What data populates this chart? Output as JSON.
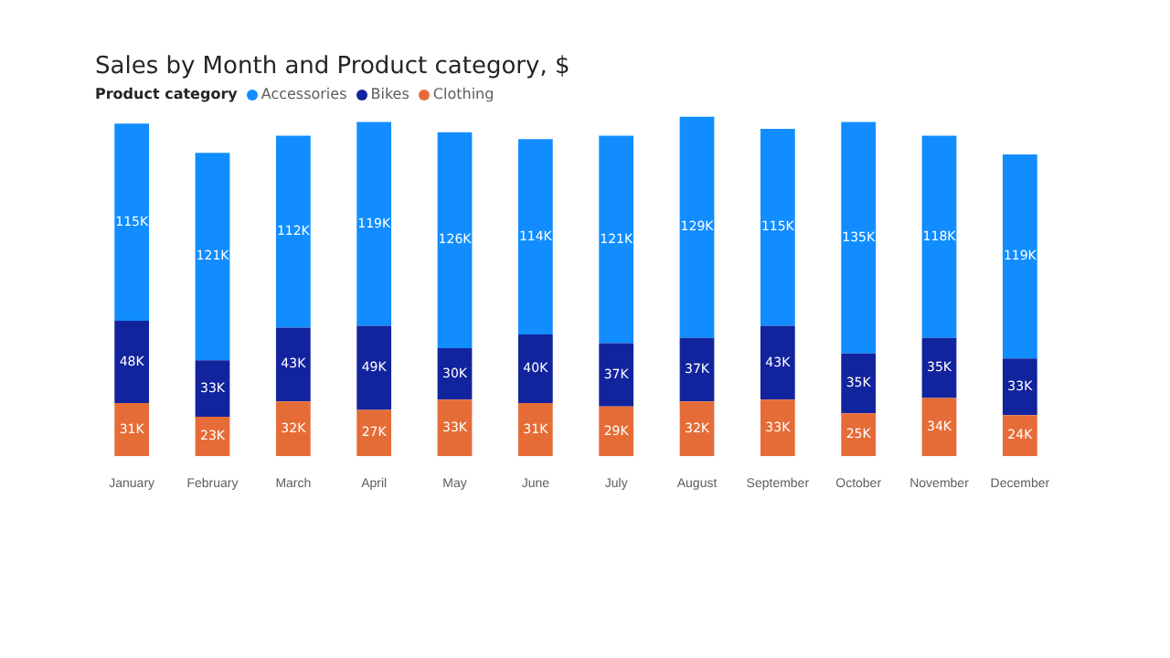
{
  "chart_data": {
    "type": "bar",
    "title": "Sales by Month and Product category, $",
    "legend_title": "Product category",
    "legend": "top left",
    "stacked": true,
    "tick_labels": "x",
    "categories": [
      "January",
      "February",
      "March",
      "April",
      "May",
      "June",
      "July",
      "August",
      "September",
      "October",
      "November",
      "December"
    ],
    "series": [
      {
        "name": "Clothing",
        "color": "#e66c37",
        "values": [
          31,
          23,
          32,
          27,
          33,
          31,
          29,
          32,
          33,
          25,
          34,
          24
        ],
        "value_labels": [
          "31K",
          "23K",
          "32K",
          "27K",
          "33K",
          "31K",
          "29K",
          "32K",
          "33K",
          "25K",
          "34K",
          "24K"
        ]
      },
      {
        "name": "Bikes",
        "color": "#12239e",
        "values": [
          48,
          33,
          43,
          49,
          30,
          40,
          37,
          37,
          43,
          35,
          35,
          33
        ],
        "value_labels": [
          "48K",
          "33K",
          "43K",
          "49K",
          "30K",
          "40K",
          "37K",
          "37K",
          "43K",
          "35K",
          "35K",
          "33K"
        ]
      },
      {
        "name": "Accessories",
        "color": "#118dff",
        "values": [
          115,
          121,
          112,
          119,
          126,
          114,
          121,
          129,
          115,
          135,
          118,
          119
        ],
        "value_labels": [
          "115K",
          "121K",
          "112K",
          "119K",
          "126K",
          "114K",
          "121K",
          "129K",
          "115K",
          "135K",
          "118K",
          "119K"
        ]
      }
    ]
  }
}
